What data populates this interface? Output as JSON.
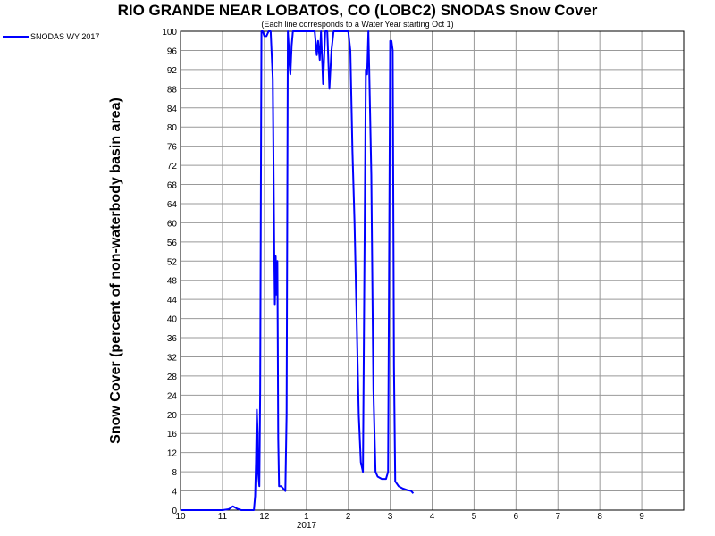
{
  "chart_data": {
    "type": "line",
    "title": "RIO GRANDE NEAR LOBATOS, CO (LOBC2) SNODAS Snow Cover",
    "subtitle": "(Each line corresponds to a Water Year starting Oct 1)",
    "ylabel": "Snow Cover (percent of non-waterbody basin area)",
    "xlabel": "",
    "x_unit": "month index from Oct 1, 2016",
    "x_tick_labels": [
      "10",
      "11",
      "12",
      "1",
      "2",
      "3",
      "4",
      "5",
      "6",
      "7",
      "8",
      "9"
    ],
    "x_year_label": "2017",
    "ylim": [
      0,
      100
    ],
    "y_ticks": [
      0,
      4,
      8,
      12,
      16,
      20,
      24,
      28,
      32,
      36,
      40,
      44,
      48,
      52,
      56,
      60,
      64,
      68,
      72,
      76,
      80,
      84,
      88,
      92,
      96,
      100
    ],
    "grid": true,
    "legend_position": "top-left",
    "series": [
      {
        "name": "SNODAS WY 2017",
        "color": "#0000ff",
        "points": [
          [
            0.0,
            0
          ],
          [
            0.6,
            0
          ],
          [
            1.0,
            0
          ],
          [
            1.15,
            0.2
          ],
          [
            1.25,
            0.8
          ],
          [
            1.35,
            0.3
          ],
          [
            1.45,
            0
          ],
          [
            1.75,
            0
          ],
          [
            1.78,
            3
          ],
          [
            1.8,
            10
          ],
          [
            1.82,
            21
          ],
          [
            1.84,
            16
          ],
          [
            1.85,
            8
          ],
          [
            1.87,
            6
          ],
          [
            1.88,
            5
          ],
          [
            1.9,
            25
          ],
          [
            1.93,
            100
          ],
          [
            1.96,
            100
          ],
          [
            2.0,
            99
          ],
          [
            2.05,
            99
          ],
          [
            2.1,
            100
          ],
          [
            2.15,
            100
          ],
          [
            2.2,
            90
          ],
          [
            2.22,
            70
          ],
          [
            2.24,
            50
          ],
          [
            2.25,
            43
          ],
          [
            2.27,
            53
          ],
          [
            2.29,
            45
          ],
          [
            2.31,
            52
          ],
          [
            2.32,
            35
          ],
          [
            2.33,
            15
          ],
          [
            2.35,
            5
          ],
          [
            2.4,
            5
          ],
          [
            2.45,
            4.5
          ],
          [
            2.5,
            4
          ],
          [
            2.53,
            20
          ],
          [
            2.56,
            100
          ],
          [
            2.58,
            97
          ],
          [
            2.6,
            93
          ],
          [
            2.62,
            91
          ],
          [
            2.65,
            97
          ],
          [
            2.68,
            100
          ],
          [
            3.1,
            100
          ],
          [
            3.2,
            100
          ],
          [
            3.25,
            95
          ],
          [
            3.28,
            98
          ],
          [
            3.32,
            94
          ],
          [
            3.35,
            100
          ],
          [
            3.4,
            89
          ],
          [
            3.45,
            100
          ],
          [
            3.5,
            100
          ],
          [
            3.55,
            88
          ],
          [
            3.6,
            96
          ],
          [
            3.65,
            100
          ],
          [
            3.7,
            100
          ],
          [
            3.75,
            100
          ],
          [
            3.9,
            100
          ],
          [
            4.0,
            100
          ],
          [
            4.05,
            96
          ],
          [
            4.1,
            75
          ],
          [
            4.15,
            60
          ],
          [
            4.2,
            40
          ],
          [
            4.25,
            20
          ],
          [
            4.3,
            10
          ],
          [
            4.35,
            8
          ],
          [
            4.42,
            92
          ],
          [
            4.45,
            91
          ],
          [
            4.48,
            100
          ],
          [
            4.5,
            92
          ],
          [
            4.55,
            70
          ],
          [
            4.6,
            25
          ],
          [
            4.65,
            8
          ],
          [
            4.7,
            7
          ],
          [
            4.8,
            6.5
          ],
          [
            4.9,
            6.5
          ],
          [
            4.95,
            8
          ],
          [
            5.0,
            98
          ],
          [
            5.03,
            98
          ],
          [
            5.06,
            96
          ],
          [
            5.09,
            30
          ],
          [
            5.12,
            6
          ],
          [
            5.2,
            5
          ],
          [
            5.3,
            4.5
          ],
          [
            5.4,
            4.2
          ],
          [
            5.5,
            4
          ],
          [
            5.55,
            3.5
          ]
        ]
      }
    ]
  }
}
